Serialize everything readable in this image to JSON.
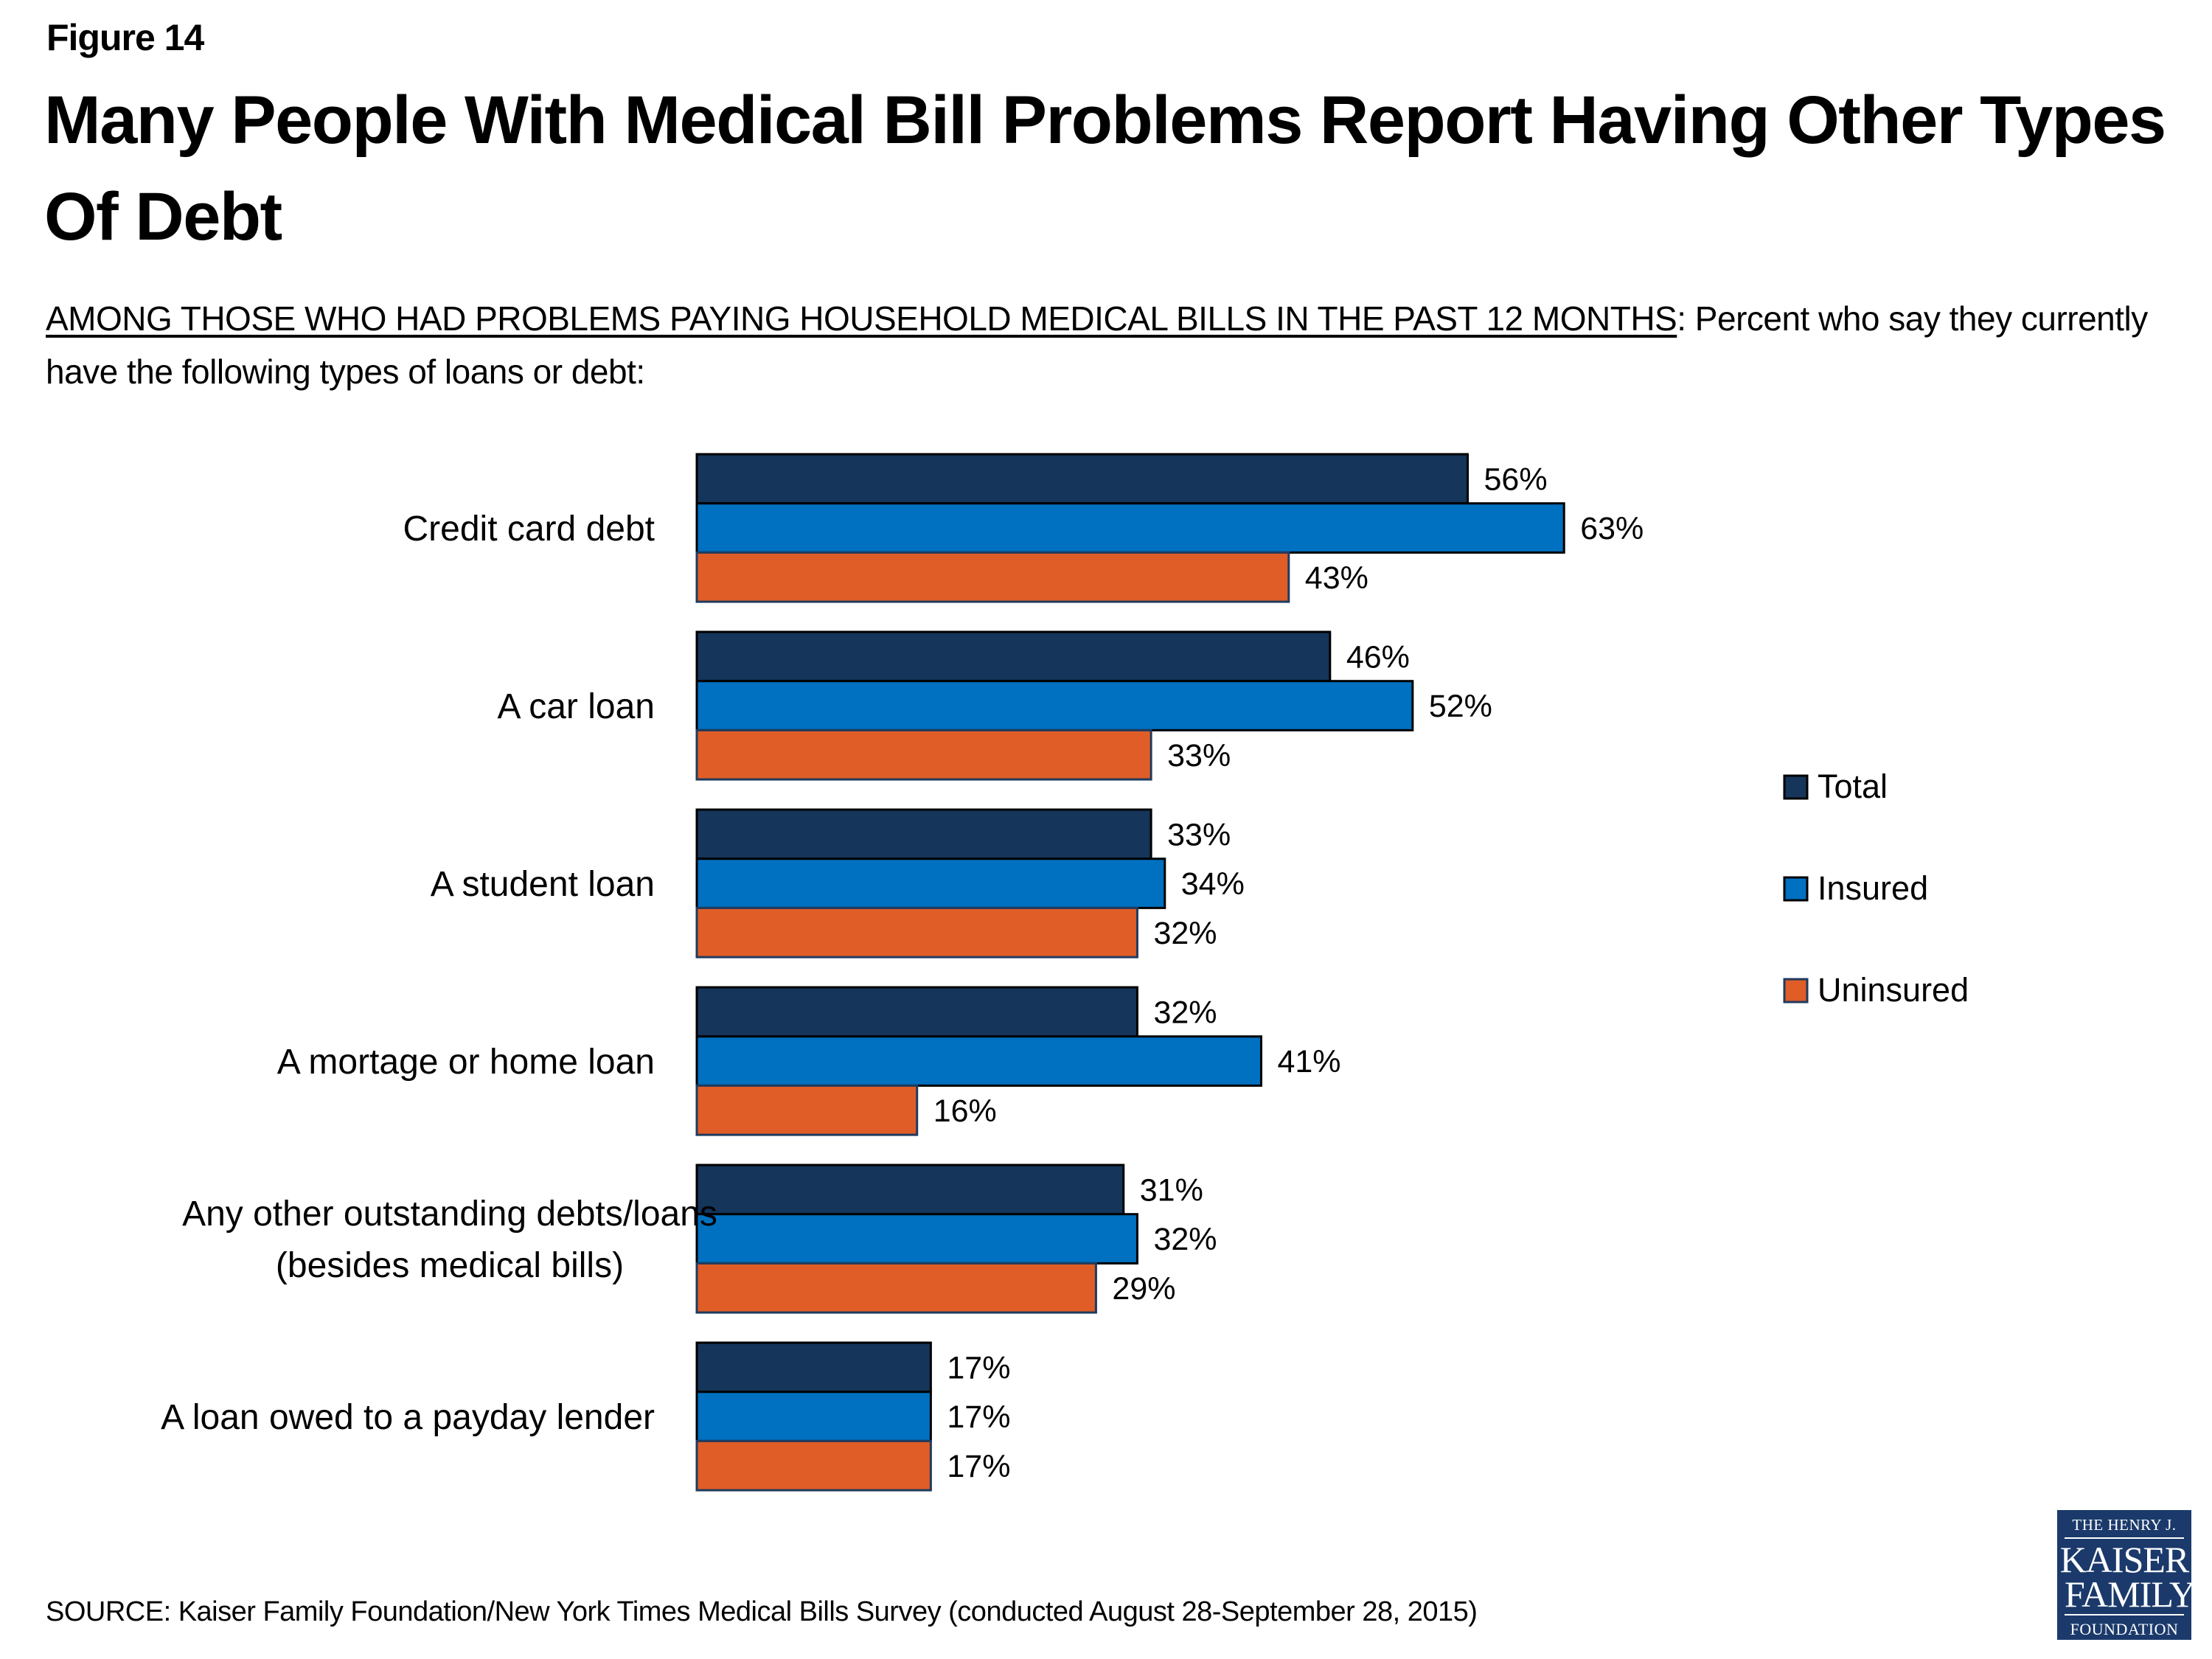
{
  "figure_label": "Figure 14",
  "title": "Many People With Medical Bill Problems Report Having Other Types Of Debt",
  "subtitle": {
    "underlined": "AMONG THOSE WHO HAD PROBLEMS PAYING HOUSEHOLD MEDICAL BILLS IN THE PAST 12 MONTHS",
    "rest": ": Percent who say they currently have the following types of loans or debt:"
  },
  "source": "SOURCE: Kaiser Family Foundation/New York Times Medical Bills Survey (conducted August 28-September 28, 2015)",
  "logo": {
    "line1": "THE HENRY J.",
    "line2": "KAISER",
    "line3": "FAMILY",
    "line4": "FOUNDATION"
  },
  "colors": {
    "total": "#15355a",
    "insured": "#0070c0",
    "uninsured": "#e05d27",
    "logo_bg": "#1b3a6b"
  },
  "chart_data": {
    "type": "bar",
    "orientation": "horizontal",
    "title": "Many People With Medical Bill Problems Report Having Other Types Of Debt",
    "xlabel": "",
    "ylabel": "",
    "unit": "%",
    "xlim": [
      0,
      100
    ],
    "grid": false,
    "legend_position": "right",
    "categories": [
      "Credit card debt",
      "A car loan",
      "A student loan",
      "A mortage or home loan",
      "Any other outstanding debts/loans\n(besides medical bills)",
      "A loan owed to a payday lender"
    ],
    "series": [
      {
        "name": "Total",
        "color": "#15355a",
        "values": [
          56,
          46,
          33,
          32,
          31,
          17
        ]
      },
      {
        "name": "Insured",
        "color": "#0070c0",
        "values": [
          63,
          52,
          34,
          41,
          32,
          17
        ]
      },
      {
        "name": "Uninsured",
        "color": "#e05d27",
        "values": [
          43,
          33,
          32,
          16,
          29,
          17
        ]
      }
    ]
  }
}
